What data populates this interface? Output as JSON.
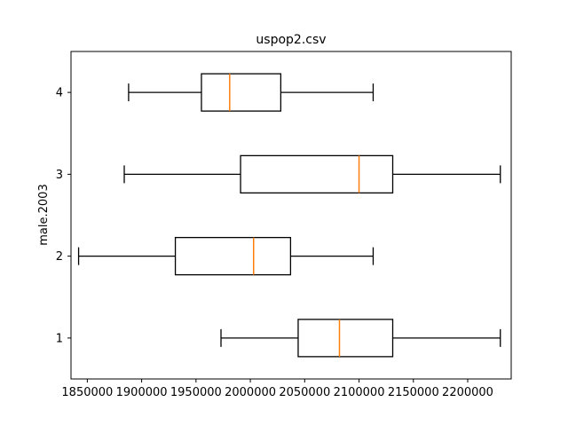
{
  "chart_data": {
    "type": "boxplot",
    "orientation": "horizontal",
    "title": "uspop2.csv",
    "xlabel": "",
    "ylabel": "male.2003",
    "xlim": [
      1835000,
      2240000
    ],
    "ylim": [
      0.5,
      4.5
    ],
    "x_ticks": [
      1850000,
      1900000,
      1950000,
      2000000,
      2050000,
      2100000,
      2150000,
      2200000
    ],
    "x_tick_labels": [
      "1850000",
      "1900000",
      "1950000",
      "2000000",
      "2050000",
      "2100000",
      "2150000",
      "2200000"
    ],
    "y_ticks": [
      1,
      2,
      3,
      4
    ],
    "y_tick_labels": [
      "1",
      "2",
      "3",
      "4"
    ],
    "grid": false,
    "box_color": "#000000",
    "median_color": "#ff7f0e",
    "boxes": [
      {
        "position": 1,
        "whisker_low": 1973000,
        "q1": 2044000,
        "median": 2082000,
        "q3": 2131000,
        "whisker_high": 2230000
      },
      {
        "position": 2,
        "whisker_low": 1842000,
        "q1": 1931000,
        "median": 2003000,
        "q3": 2037000,
        "whisker_high": 2113000
      },
      {
        "position": 3,
        "whisker_low": 1884000,
        "q1": 1991000,
        "median": 2100000,
        "q3": 2131000,
        "whisker_high": 2230000
      },
      {
        "position": 4,
        "whisker_low": 1888000,
        "q1": 1955000,
        "median": 1981000,
        "q3": 2028000,
        "whisker_high": 2113000
      }
    ]
  }
}
